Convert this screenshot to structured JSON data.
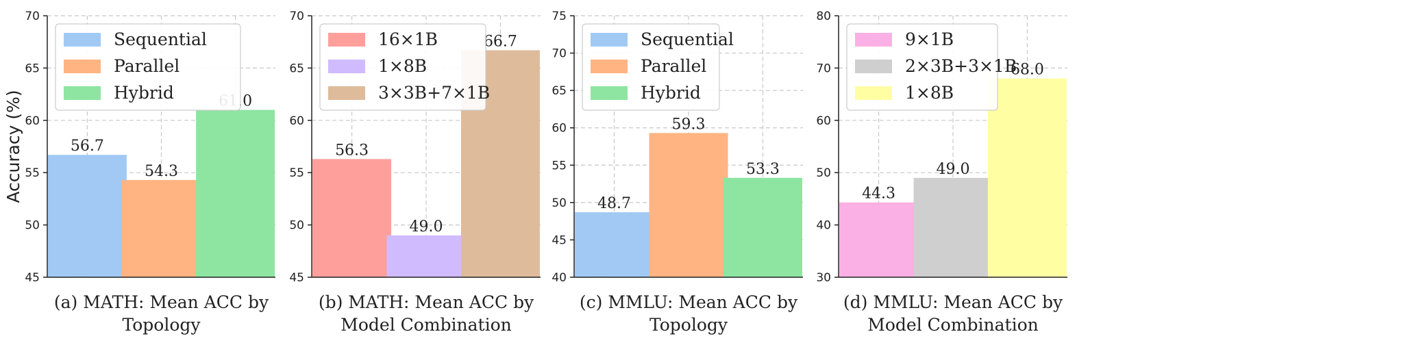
{
  "chart_data": [
    {
      "type": "bar",
      "caption": [
        "(a) MATH: Mean ACC by",
        "Topology"
      ],
      "ylabel": "Accuracy (%)",
      "ylim": [
        45,
        70
      ],
      "yticks": [
        45,
        50,
        55,
        60,
        65,
        70
      ],
      "grid": true,
      "legend_position": "top-left",
      "categories": [
        "Sequential",
        "Parallel",
        "Hybrid"
      ],
      "values": [
        56.7,
        54.3,
        61.0
      ],
      "value_labels": [
        "56.7",
        "54.3",
        "61.0"
      ],
      "colors": [
        "#a1c9f4",
        "#ffb482",
        "#8de5a1"
      ]
    },
    {
      "type": "bar",
      "caption": [
        "(b) MATH: Mean ACC by",
        "Model Combination"
      ],
      "ylabel": "",
      "ylim": [
        45,
        70
      ],
      "yticks": [
        45,
        50,
        55,
        60,
        65,
        70
      ],
      "grid": true,
      "legend_position": "top-left",
      "categories": [
        "16×1B",
        "1×8B",
        "3×3B+7×1B"
      ],
      "values": [
        56.3,
        49.0,
        66.7
      ],
      "value_labels": [
        "56.3",
        "49.0",
        "66.7"
      ],
      "colors": [
        "#ff9f9b",
        "#d0bbff",
        "#debb9b"
      ]
    },
    {
      "type": "bar",
      "caption": [
        "(c) MMLU: Mean ACC by",
        "Topology"
      ],
      "ylabel": "",
      "ylim": [
        40,
        75
      ],
      "yticks": [
        40,
        45,
        50,
        55,
        60,
        65,
        70,
        75
      ],
      "grid": true,
      "legend_position": "top-left",
      "categories": [
        "Sequential",
        "Parallel",
        "Hybrid"
      ],
      "values": [
        48.7,
        59.3,
        53.3
      ],
      "value_labels": [
        "48.7",
        "59.3",
        "53.3"
      ],
      "colors": [
        "#a1c9f4",
        "#ffb482",
        "#8de5a1"
      ]
    },
    {
      "type": "bar",
      "caption": [
        "(d) MMLU: Mean ACC by",
        "Model Combination"
      ],
      "ylabel": "",
      "ylim": [
        30,
        80
      ],
      "yticks": [
        30,
        40,
        50,
        60,
        70,
        80
      ],
      "grid": true,
      "legend_position": "top-left",
      "categories": [
        "9×1B",
        "2×3B+3×1B",
        "1×8B"
      ],
      "values": [
        44.3,
        49.0,
        68.0
      ],
      "value_labels": [
        "44.3",
        "49.0",
        "68.0"
      ],
      "colors": [
        "#fab0e4",
        "#cfcfcf",
        "#fffea3"
      ]
    }
  ]
}
